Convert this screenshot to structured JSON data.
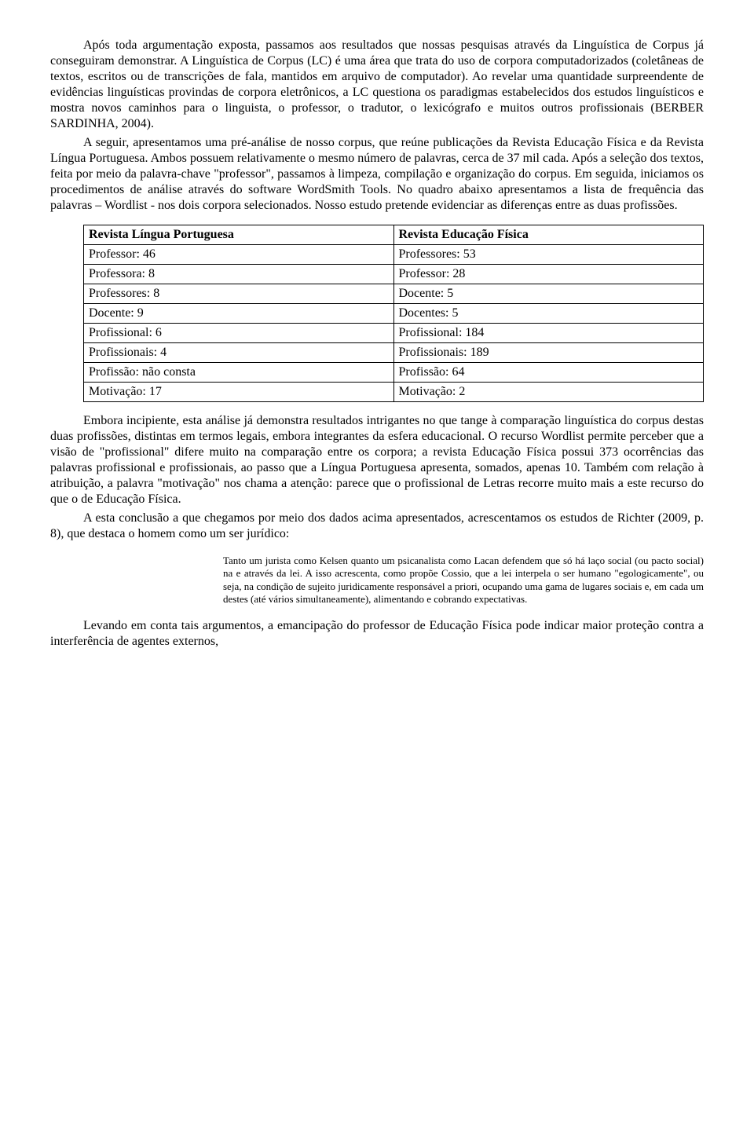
{
  "paragraphs": {
    "p1": "Após toda argumentação exposta, passamos aos resultados que nossas pesquisas através da Linguística de Corpus já conseguiram demonstrar. A Linguística de Corpus (LC) é uma área que trata do uso de corpora computadorizados (coletâneas de textos, escritos ou de transcrições de fala, mantidos em arquivo de computador). Ao revelar uma quantidade surpreendente de evidências linguísticas provindas de corpora eletrônicos, a LC questiona os paradigmas estabelecidos dos estudos linguísticos e mostra novos caminhos para o linguista, o professor, o tradutor, o lexicógrafo e muitos outros profissionais (BERBER SARDINHA, 2004).",
    "p2": "A seguir, apresentamos uma pré-análise de nosso corpus, que reúne publicações da Revista Educação Física e da Revista Língua Portuguesa. Ambos possuem relativamente o mesmo número de palavras, cerca de 37 mil cada. Após a seleção dos textos, feita por meio da palavra-chave \"professor\", passamos à limpeza, compilação e organização do corpus. Em seguida, iniciamos os procedimentos de análise através do software WordSmith Tools. No quadro abaixo apresentamos a lista de frequência das palavras – Wordlist - nos dois corpora selecionados. Nosso estudo pretende evidenciar as diferenças entre as duas profissões.",
    "p3": "Embora incipiente, esta análise já demonstra resultados intrigantes no que tange à comparação linguística do corpus destas duas profissões, distintas em termos legais, embora integrantes da esfera educacional. O recurso Wordlist permite perceber que a visão de \"profissional\" difere muito na comparação entre os corpora; a revista Educação Física possui 373 ocorrências das palavras profissional e profissionais, ao passo que a Língua Portuguesa apresenta, somados, apenas 10. Também com relação à atribuição, a palavra \"motivação\" nos chama a atenção: parece que o profissional de Letras recorre muito mais a este recurso do que o de Educação Física.",
    "p4": "A esta conclusão a que chegamos por meio dos dados acima apresentados, acrescentamos os estudos de Richter (2009, p. 8), que destaca o homem como um ser jurídico:",
    "quote": "Tanto um jurista como Kelsen quanto um psicanalista como Lacan defendem que só há laço social (ou pacto social) na e através da lei. A isso acrescenta, como propõe Cossio, que a lei interpela o ser humano \"egologicamente\", ou seja, na condição de sujeito juridicamente responsável a priori, ocupando uma gama de lugares sociais e, em cada um destes (até vários simultaneamente), alimentando e cobrando expectativas.",
    "p5": "Levando em conta tais argumentos, a emancipação do professor de Educação Física pode indicar maior proteção contra a interferência de agentes externos,"
  },
  "table": {
    "headers": [
      "Revista Língua Portuguesa",
      "Revista Educação Física"
    ],
    "rows": [
      [
        "Professor: 46",
        "Professores: 53"
      ],
      [
        "Professora: 8",
        "Professor: 28"
      ],
      [
        "Professores: 8",
        "Docente: 5"
      ],
      [
        "Docente: 9",
        "Docentes: 5"
      ],
      [
        "Profissional: 6",
        "Profissional: 184"
      ],
      [
        "Profissionais: 4",
        "Profissionais: 189"
      ],
      [
        "Profissão: não consta",
        "Profissão: 64"
      ],
      [
        "Motivação: 17",
        "Motivação: 2"
      ]
    ]
  }
}
